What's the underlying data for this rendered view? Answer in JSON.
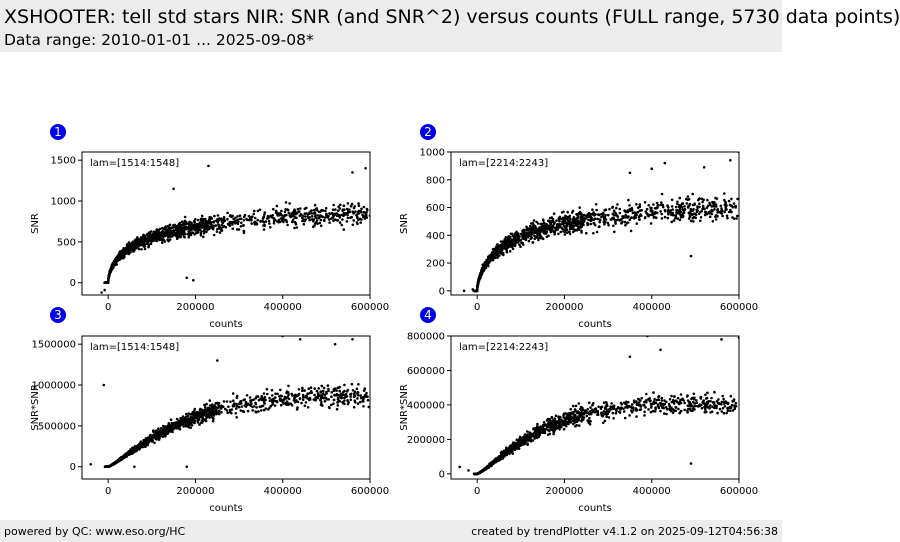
{
  "header": {
    "title": "XSHOOTER: tell std stars NIR: SNR (and SNR^2) versus counts (FULL range, 5730 data points)",
    "subtitle": "Data range: 2010-01-01 ... 2025-09-08*"
  },
  "footer": {
    "left": "powered by QC: www.eso.org/HC",
    "right": "created by trendPlotter v4.1.2 on 2025-09-12T04:56:38"
  },
  "colors": {
    "badge": "#0000ee",
    "points": "#000000",
    "header_bg": "#ececec"
  },
  "chart_data": [
    {
      "type": "scatter",
      "badge": "1",
      "annotation": "lam=[1514:1548]",
      "xlabel": "counts",
      "ylabel": "SNR",
      "xlim": [
        -60000,
        600000
      ],
      "ylim": [
        -150,
        1600
      ],
      "xticks": [
        0,
        200000,
        400000,
        600000
      ],
      "yticks": [
        0,
        500,
        1000,
        1500
      ],
      "series": [
        {
          "trend": {
            "max": 950,
            "scale": 130000,
            "exp": 0.55
          },
          "points": [
            [
              -15000,
              -120
            ],
            [
              -8000,
              -90
            ],
            [
              180000,
              60
            ],
            [
              195000,
              30
            ],
            [
              230000,
              1430
            ],
            [
              150000,
              1150
            ],
            [
              540000,
              650
            ],
            [
              600000,
              820
            ],
            [
              590000,
              1400
            ],
            [
              560000,
              1350
            ]
          ]
        }
      ]
    },
    {
      "type": "scatter",
      "badge": "2",
      "annotation": "lam=[2214:2243]",
      "xlabel": "counts",
      "ylabel": "SNR",
      "xlim": [
        -60000,
        600000
      ],
      "ylim": [
        -30,
        1000
      ],
      "xticks": [
        0,
        200000,
        400000,
        600000
      ],
      "yticks": [
        0,
        200,
        400,
        600,
        800,
        1000
      ],
      "series": [
        {
          "trend": {
            "max": 640,
            "scale": 110000,
            "exp": 0.6
          },
          "points": [
            [
              -30000,
              0
            ],
            [
              -10000,
              10
            ],
            [
              490000,
              250
            ],
            [
              430000,
              920
            ],
            [
              580000,
              940
            ],
            [
              600000,
              1000
            ],
            [
              400000,
              880
            ],
            [
              350000,
              850
            ],
            [
              520000,
              890
            ]
          ]
        }
      ]
    },
    {
      "type": "scatter",
      "badge": "3",
      "annotation": "lam=[1514:1548]",
      "xlabel": "counts",
      "ylabel": "SNR*SNR",
      "xlim": [
        -60000,
        600000
      ],
      "ylim": [
        -150000,
        1600000
      ],
      "xticks": [
        0,
        200000,
        400000,
        600000
      ],
      "yticks": [
        0,
        500000,
        1000000,
        1500000
      ],
      "series": [
        {
          "trend": {
            "max": 900000,
            "scale": 180000,
            "exp": 1.2
          },
          "points": [
            [
              -10000,
              1000000
            ],
            [
              -40000,
              30000
            ],
            [
              60000,
              0
            ],
            [
              180000,
              0
            ],
            [
              400000,
              1600000
            ],
            [
              440000,
              1560000
            ],
            [
              560000,
              1560000
            ],
            [
              520000,
              1500000
            ],
            [
              250000,
              1300000
            ]
          ]
        }
      ]
    },
    {
      "type": "scatter",
      "badge": "4",
      "annotation": "lam=[2214:2243]",
      "xlabel": "counts",
      "ylabel": "SNR*SNR",
      "xlim": [
        -60000,
        600000
      ],
      "ylim": [
        -30000,
        800000
      ],
      "xticks": [
        0,
        200000,
        400000,
        600000
      ],
      "yticks": [
        0,
        200000,
        400000,
        600000,
        800000
      ],
      "series": [
        {
          "trend": {
            "max": 410000,
            "scale": 150000,
            "exp": 1.25
          },
          "points": [
            [
              -40000,
              40000
            ],
            [
              -20000,
              20000
            ],
            [
              390000,
              800000
            ],
            [
              560000,
              780000
            ],
            [
              600000,
              790000
            ],
            [
              350000,
              680000
            ],
            [
              420000,
              720000
            ],
            [
              490000,
              60000
            ]
          ]
        }
      ]
    }
  ]
}
